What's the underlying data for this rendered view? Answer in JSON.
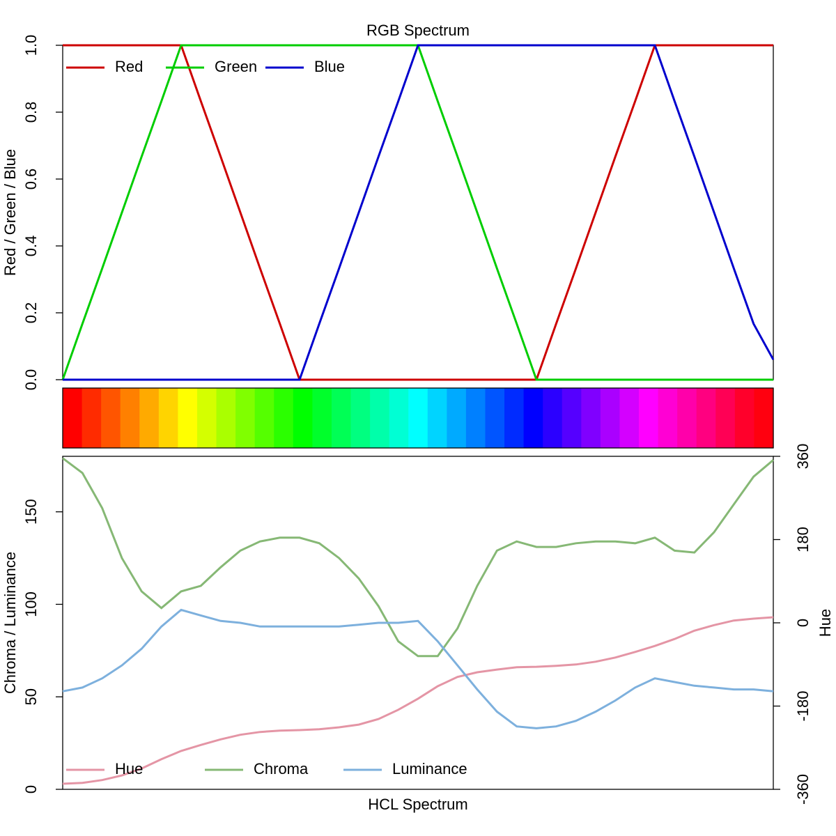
{
  "chart_data": [
    {
      "type": "line",
      "title": "RGB Spectrum",
      "ylabel": "Red / Green / Blue",
      "ylim": [
        0,
        1
      ],
      "yticks": [
        {
          "value": 0,
          "label": "0.0"
        },
        0.2,
        0.4,
        0.6,
        0.8,
        {
          "value": 1,
          "label": "1.0"
        }
      ],
      "legend": "topleft",
      "series": [
        {
          "name": "Red",
          "color": "#CD0000",
          "values": [
            1,
            1,
            1,
            1,
            1,
            1,
            1,
            0.833,
            0.667,
            0.5,
            0.333,
            0.167,
            0,
            0,
            0,
            0,
            0,
            0,
            0,
            0,
            0,
            0,
            0,
            0,
            0,
            0.167,
            0.333,
            0.5,
            0.667,
            0.833,
            1,
            1,
            1,
            1,
            1,
            1,
            1
          ]
        },
        {
          "name": "Green",
          "color": "#00CD00",
          "values": [
            0,
            0.167,
            0.333,
            0.5,
            0.667,
            0.833,
            1,
            1,
            1,
            1,
            1,
            1,
            1,
            1,
            1,
            1,
            1,
            1,
            1,
            0.833,
            0.667,
            0.5,
            0.333,
            0.167,
            0,
            0,
            0,
            0,
            0,
            0,
            0,
            0,
            0,
            0,
            0,
            0,
            0
          ]
        },
        {
          "name": "Blue",
          "color": "#0000CD",
          "values": [
            0,
            0,
            0,
            0,
            0,
            0,
            0,
            0,
            0,
            0,
            0,
            0,
            0,
            0.167,
            0.333,
            0.5,
            0.667,
            0.833,
            1,
            1,
            1,
            1,
            1,
            1,
            1,
            1,
            1,
            1,
            1,
            1,
            1,
            0.833,
            0.667,
            0.5,
            0.333,
            0.167,
            0.06
          ]
        }
      ]
    },
    {
      "type": "line",
      "xlabel": "HCL Spectrum",
      "ylabel": "Chroma / Luminance",
      "y2label": "Hue",
      "ylim": [
        0,
        180
      ],
      "yticks": [
        0,
        50,
        100,
        150
      ],
      "y2lim": [
        -360,
        360
      ],
      "y2ticks": [
        -360,
        -180,
        0,
        180,
        360
      ],
      "legend": "bottomleft",
      "series": [
        {
          "name": "Hue",
          "color": "#E495A5",
          "axis": "y2",
          "values": [
            -348,
            -346,
            -340,
            -330,
            -315,
            -295,
            -277,
            -264,
            -252,
            -242,
            -236,
            -233,
            -232,
            -230,
            -226,
            -220,
            -208,
            -188,
            -164,
            -137,
            -117,
            -107,
            -101,
            -96,
            -95,
            -93,
            -90,
            -84,
            -75,
            -63,
            -50,
            -35,
            -17,
            -5,
            5,
            9,
            12
          ]
        },
        {
          "name": "Chroma",
          "color": "#86B875",
          "values": [
            179,
            171,
            152,
            125,
            107,
            98,
            107,
            110,
            120,
            129,
            134,
            136,
            136,
            133,
            125,
            114,
            99,
            80,
            72,
            72,
            87,
            110,
            129,
            134,
            131,
            131,
            133,
            134,
            134,
            133,
            136,
            129,
            128,
            139,
            154,
            169,
            178
          ]
        },
        {
          "name": "Luminance",
          "color": "#7DB0DD",
          "values": [
            53,
            55,
            60,
            67,
            76,
            88,
            97,
            94,
            91,
            90,
            88,
            88,
            88,
            88,
            88,
            89,
            90,
            90,
            91,
            80,
            67,
            54,
            42,
            34,
            33,
            34,
            37,
            42,
            48,
            55,
            60,
            58,
            56,
            55,
            54,
            54,
            53
          ]
        }
      ]
    }
  ]
}
